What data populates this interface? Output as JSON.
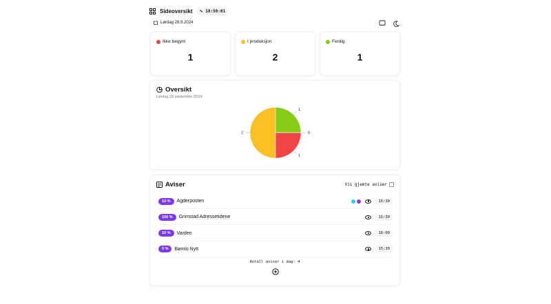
{
  "header": {
    "title": "Sideoversikt",
    "clock": "18:50:01",
    "date": "Lørdag 28.9.2024"
  },
  "status_cards": [
    {
      "label": "Ikke begynt",
      "value": "1",
      "color": "#ef4444"
    },
    {
      "label": "I produksjon",
      "value": "2",
      "color": "#fbbf24"
    },
    {
      "label": "Ferdig",
      "value": "1",
      "color": "#84cc16"
    }
  ],
  "chart_data": {
    "type": "pie",
    "title": "Oversikt",
    "subtitle": "Lørdag 28 september 2024",
    "values": [
      1,
      0,
      1,
      2
    ],
    "colors": [
      "#84cc16",
      "#9ca3af",
      "#ef4444",
      "#fbbf24"
    ]
  },
  "newspapers": {
    "title": "Aviser",
    "toggle_label": "Vis gjemte aviser",
    "rows": [
      {
        "progress": "10 %",
        "name": "Agderposten",
        "time": "15:30",
        "dots": [
          "#22d3ee",
          "#9333ea"
        ]
      },
      {
        "progress": "100 %",
        "name": "Grimstad Adressetidene",
        "time": "15:30",
        "dots": []
      },
      {
        "progress": "10 %",
        "name": "Varden",
        "time": "16:00",
        "dots": []
      },
      {
        "progress": "0 %",
        "name": "Bømlo Nytt",
        "time": "15:30",
        "dots": []
      }
    ],
    "footer": "Antall aviser i dag: 4"
  }
}
